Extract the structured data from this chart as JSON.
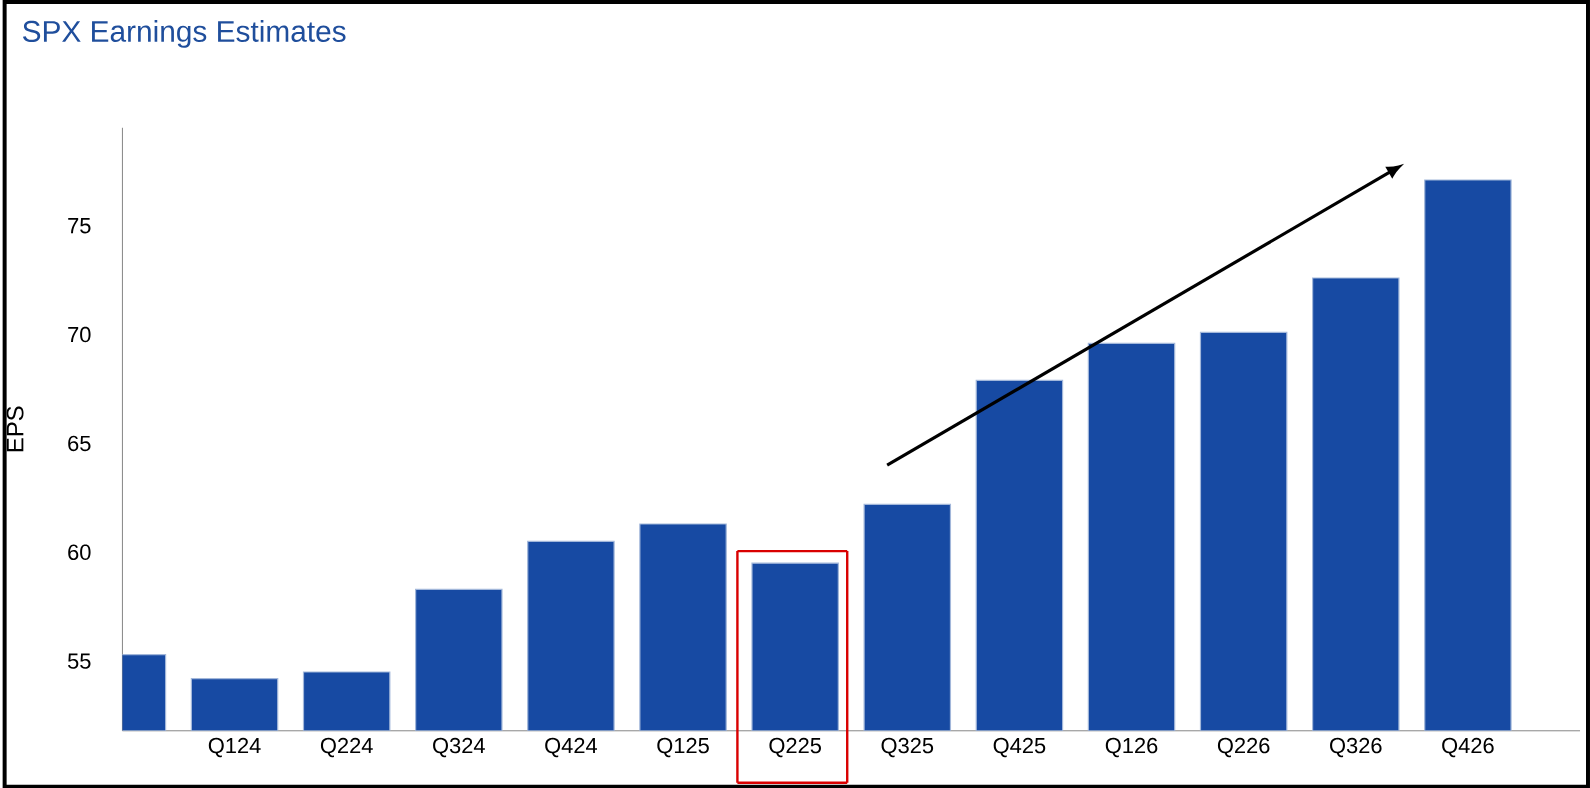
{
  "chart_data": {
    "type": "bar",
    "title": "SPX Earnings Estimates",
    "ylabel": "EPS",
    "categories": [
      null,
      "Q124",
      "Q224",
      "Q324",
      "Q424",
      "Q125",
      "Q225",
      "Q325",
      "Q425",
      "Q126",
      "Q226",
      "Q326",
      "Q426"
    ],
    "values": [
      55.3,
      54.2,
      54.5,
      58.3,
      60.5,
      61.3,
      59.5,
      62.2,
      67.9,
      69.6,
      70.1,
      72.6,
      77.1
    ],
    "color": "#174aa3",
    "ylim": [
      51.8,
      79.5
    ],
    "yticks": [
      55,
      60,
      65,
      70,
      75
    ],
    "grid": false
  }
}
